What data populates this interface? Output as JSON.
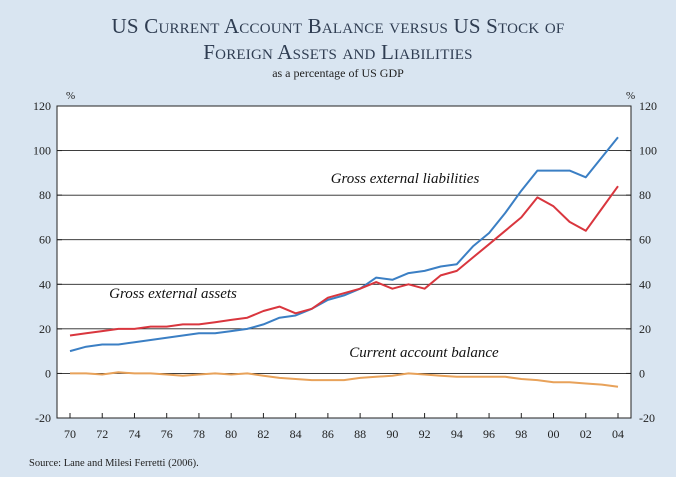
{
  "title_line1": "US Current Account Balance versus US Stock of",
  "title_line2": "Foreign Assets and Liabilities",
  "subtitle": "as a percentage of US GDP",
  "source": "Source: Lane and Milesi Ferretti (2006).",
  "colors": {
    "background": "#d9e5f1",
    "plot_bg": "#ffffff",
    "liabilities": "#3b7fc4",
    "assets": "#d9363e",
    "current_account": "#e8a25a"
  },
  "chart_data": {
    "type": "line",
    "x": [
      1970,
      1971,
      1972,
      1973,
      1974,
      1975,
      1976,
      1977,
      1978,
      1979,
      1980,
      1981,
      1982,
      1983,
      1984,
      1985,
      1986,
      1987,
      1988,
      1989,
      1990,
      1991,
      1992,
      1993,
      1994,
      1995,
      1996,
      1997,
      1998,
      1999,
      2000,
      2001,
      2002,
      2003,
      2004
    ],
    "xticks": [
      1970,
      1972,
      1974,
      1976,
      1978,
      1980,
      1982,
      1984,
      1986,
      1988,
      1990,
      1992,
      1994,
      1996,
      1998,
      2000,
      2002,
      2004
    ],
    "xtick_labels": [
      "70",
      "72",
      "74",
      "76",
      "78",
      "80",
      "82",
      "84",
      "86",
      "88",
      "90",
      "92",
      "94",
      "96",
      "98",
      "00",
      "02",
      "04"
    ],
    "ylim": [
      -20,
      120
    ],
    "yticks": [
      -20,
      0,
      20,
      40,
      60,
      80,
      100,
      120
    ],
    "ytick_labels": [
      "-20",
      "0",
      "20",
      "40",
      "60",
      "80",
      "100",
      "120"
    ],
    "ylabel_left": "%",
    "ylabel_right": "%",
    "grid": "horizontal",
    "series": [
      {
        "name": "Gross external liabilities",
        "color": "#3b7fc4",
        "values": [
          10,
          12,
          13,
          13,
          14,
          15,
          16,
          17,
          18,
          18,
          19,
          20,
          22,
          25,
          26,
          29,
          33,
          35,
          38,
          43,
          42,
          45,
          46,
          48,
          49,
          57,
          63,
          72,
          82,
          91,
          91,
          91,
          88,
          97,
          106
        ]
      },
      {
        "name": "Gross external assets",
        "color": "#d9363e",
        "values": [
          17,
          18,
          19,
          20,
          20,
          21,
          21,
          22,
          22,
          23,
          24,
          25,
          28,
          30,
          27,
          29,
          34,
          36,
          38,
          41,
          38,
          40,
          38,
          44,
          46,
          52,
          58,
          64,
          70,
          79,
          75,
          68,
          64,
          74,
          84
        ]
      },
      {
        "name": "Current account balance",
        "color": "#e8a25a",
        "values": [
          0,
          0,
          -0.5,
          0.5,
          0,
          0,
          -0.5,
          -1,
          -0.5,
          0,
          -0.5,
          0,
          -1,
          -2,
          -2.5,
          -3,
          -3,
          -3,
          -2,
          -1.5,
          -1,
          0,
          -0.5,
          -1,
          -1.5,
          -1.5,
          -1.5,
          -1.5,
          -2.5,
          -3,
          -4,
          -4,
          -4.5,
          -5,
          -6
        ]
      }
    ],
    "annotations": [
      {
        "text": "Gross external liabilities",
        "series": "Gross external liabilities"
      },
      {
        "text": "Gross external assets",
        "series": "Gross external assets"
      },
      {
        "text": "Current account balance",
        "series": "Current account balance"
      }
    ]
  }
}
